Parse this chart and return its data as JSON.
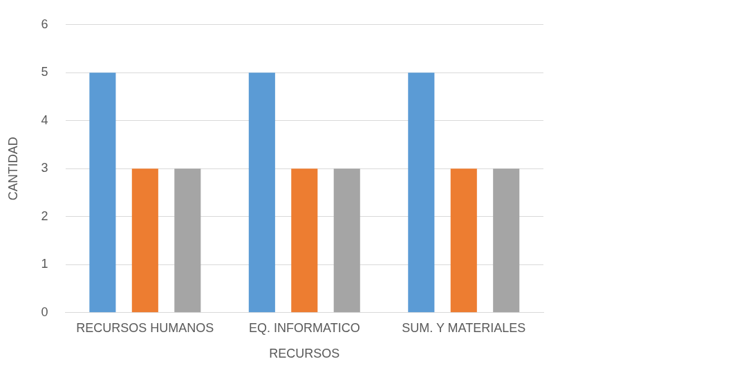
{
  "chart_data": {
    "type": "bar",
    "xlabel": "RECURSOS",
    "ylabel": "CANTIDAD",
    "categories": [
      "RECURSOS HUMANOS",
      "EQ. INFORMATICO",
      "SUM. Y MATERIALES"
    ],
    "series": [
      {
        "color": "#5b9bd5",
        "values": [
          5,
          5,
          5
        ]
      },
      {
        "color": "#ed7d31",
        "values": [
          3,
          3,
          3
        ]
      },
      {
        "color": "#a5a5a5",
        "values": [
          3,
          3,
          3
        ]
      }
    ],
    "ylim": [
      0,
      6
    ],
    "yticks": [
      0,
      1,
      2,
      3,
      4,
      5,
      6
    ],
    "grid": "y",
    "legend": false
  }
}
